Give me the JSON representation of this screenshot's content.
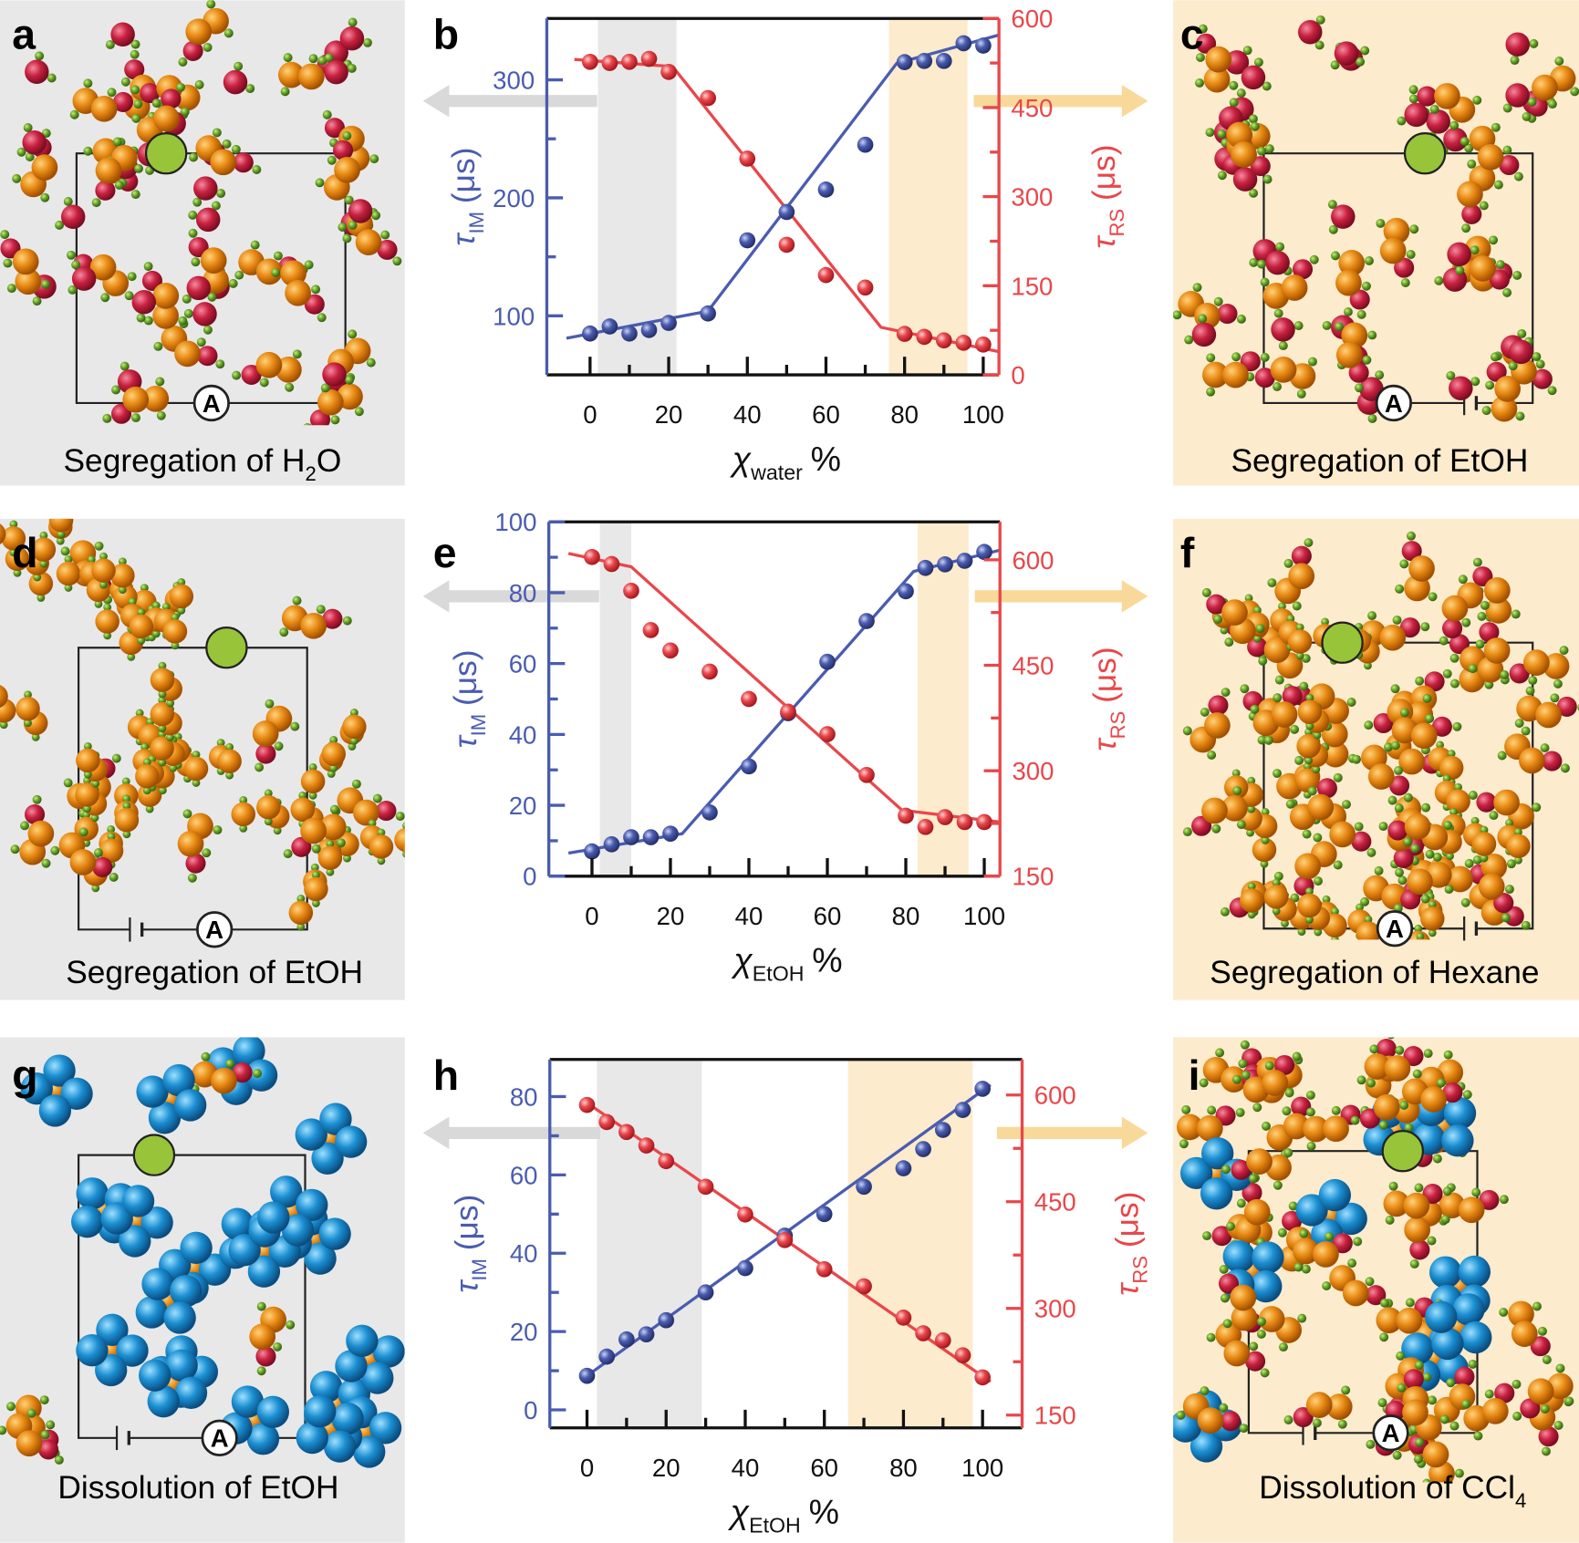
{
  "panels": [
    {
      "label": "a",
      "caption": {
        "text": "Segregation of H",
        "sub": "2",
        "tail": "O"
      },
      "ammeter": "A"
    },
    {
      "label": "c",
      "caption": {
        "text": "Segregation of EtOH"
      },
      "ammeter": "A"
    },
    {
      "label": "d",
      "caption": {
        "text": "Segregation of EtOH"
      },
      "ammeter": "A"
    },
    {
      "label": "f",
      "caption": {
        "text": "Segregation of Hexane"
      },
      "ammeter": "A"
    },
    {
      "label": "g",
      "caption": {
        "text": "Dissolution of EtOH"
      },
      "ammeter": "A"
    },
    {
      "label": "i",
      "caption": {
        "text": "Dissolution of CCl",
        "sub": "4"
      },
      "ammeter": "A"
    }
  ],
  "chart_data": [
    {
      "type": "scatter",
      "panel_label": "b",
      "xlabel": {
        "symbol": "χ",
        "sub": "water",
        "tail": "%"
      },
      "ylabel": {
        "symbol": "τ",
        "sub": "IM",
        "tail": "(μs)"
      },
      "y2label": {
        "symbol": "τ",
        "sub": "RS",
        "tail": "(μs)"
      },
      "xlim": [
        -11,
        104
      ],
      "xticks": [
        0,
        20,
        40,
        60,
        80,
        100
      ],
      "xminor": [
        10,
        30,
        50,
        70,
        90
      ],
      "ylim": [
        50,
        352
      ],
      "yticks": [
        100,
        200,
        300
      ],
      "yminor": [
        150,
        250
      ],
      "y2lim": [
        0,
        600
      ],
      "y2ticks": [
        0,
        150,
        300,
        450,
        600
      ],
      "y2minor": [
        75,
        225,
        375,
        525
      ],
      "shaded": [
        {
          "range": [
            2,
            22
          ],
          "color": "#e8e8e8"
        },
        {
          "range": [
            76,
            96
          ],
          "color": "#fcebcc"
        }
      ],
      "x": [
        0,
        5,
        10,
        15,
        20,
        30,
        40,
        50,
        60,
        70,
        80,
        85,
        90,
        95,
        100
      ],
      "series": [
        {
          "color": "#4a5cb0",
          "axis": "y",
          "values": [
            85,
            91,
            85,
            88,
            94,
            102,
            164,
            188,
            207,
            245,
            315,
            316,
            316,
            331,
            329
          ]
        },
        {
          "color": "#e8474b",
          "axis": "y2",
          "values": [
            527,
            525,
            527,
            532,
            510,
            466,
            364,
            219,
            168,
            147,
            69,
            64,
            58,
            54,
            51
          ]
        }
      ],
      "fits": [
        {
          "color": "#4a5cb0",
          "axis": "y",
          "x": [
            -6,
            30,
            78,
            104
          ],
          "values": [
            81,
            104,
            314,
            338
          ]
        },
        {
          "color": "#e8474b",
          "axis": "y2",
          "x": [
            -4,
            21,
            74,
            104
          ],
          "values": [
            531,
            519,
            80,
            39
          ]
        }
      ]
    },
    {
      "type": "scatter",
      "panel_label": "e",
      "xlabel": {
        "symbol": "χ",
        "sub": "EtOH",
        "tail": "%"
      },
      "ylabel": {
        "symbol": "τ",
        "sub": "IM",
        "tail": "(μs)"
      },
      "y2label": {
        "symbol": "τ",
        "sub": "RS",
        "tail": "(μs)"
      },
      "xlim": [
        -11,
        104
      ],
      "xticks": [
        0,
        20,
        40,
        60,
        80,
        100
      ],
      "xminor": [
        10,
        30,
        50,
        70,
        90
      ],
      "ylim": [
        0,
        100
      ],
      "yticks": [
        0,
        20,
        40,
        60,
        80,
        100
      ],
      "yminor": [
        10,
        30,
        50,
        70,
        90
      ],
      "y2lim": [
        150,
        654
      ],
      "y2ticks": [
        150,
        300,
        450,
        600
      ],
      "y2minor": [
        225,
        375,
        525
      ],
      "shaded": [
        {
          "range": [
            2,
            10
          ],
          "color": "#e8e8e8"
        },
        {
          "range": [
            83,
            96
          ],
          "color": "#fcebcc"
        }
      ],
      "x": [
        0,
        5,
        10,
        15,
        20,
        30,
        40,
        50,
        60,
        70,
        80,
        85,
        90,
        95,
        100
      ],
      "series": [
        {
          "color": "#4a5cb0",
          "axis": "y",
          "values": [
            7,
            9,
            11,
            11,
            12,
            18,
            31,
            46,
            60.5,
            72,
            80.4,
            87,
            88,
            89,
            91.5
          ]
        },
        {
          "color": "#e8474b",
          "axis": "y2",
          "values": [
            604,
            594,
            556,
            500,
            471,
            441,
            402,
            384,
            352,
            294,
            236,
            220,
            234,
            227,
            227
          ]
        }
      ],
      "fits": [
        {
          "color": "#4a5cb0",
          "axis": "y",
          "x": [
            -6,
            23,
            82,
            104
          ],
          "values": [
            6.5,
            12,
            86,
            92
          ]
        },
        {
          "color": "#e8474b",
          "axis": "y2",
          "x": [
            -6,
            10,
            79,
            104
          ],
          "values": [
            609,
            590,
            244,
            227
          ]
        }
      ]
    },
    {
      "type": "scatter",
      "panel_label": "h",
      "xlabel": {
        "symbol": "χ",
        "sub": "EtOH",
        "tail": "%"
      },
      "ylabel": {
        "symbol": "τ",
        "sub": "IM",
        "tail": "(μs)"
      },
      "y2label": {
        "symbol": "τ",
        "sub": "RS",
        "tail": "(μs)"
      },
      "xlim": [
        -9.4,
        110
      ],
      "xticks": [
        0,
        20,
        40,
        60,
        80,
        100
      ],
      "xminor": [
        10,
        30,
        50,
        70,
        90
      ],
      "ylim": [
        -4.6,
        89.5
      ],
      "yticks": [
        0,
        20,
        40,
        60,
        80
      ],
      "yminor": [
        10,
        30,
        50,
        70
      ],
      "y2lim": [
        132,
        650
      ],
      "y2ticks": [
        150,
        300,
        450,
        600
      ],
      "y2minor": [
        225,
        375,
        525
      ],
      "shaded": [
        {
          "range": [
            2.5,
            29
          ],
          "color": "#e8e8e8"
        },
        {
          "range": [
            66,
            97.5
          ],
          "color": "#fcebcc"
        }
      ],
      "x": [
        0,
        5,
        10,
        15,
        20,
        30,
        40,
        50,
        60,
        70,
        80,
        85,
        90,
        95,
        100
      ],
      "series": [
        {
          "color": "#4a5cb0",
          "axis": "y",
          "values": [
            8.7,
            13.6,
            18,
            19.3,
            22.9,
            30,
            36.2,
            44.5,
            50,
            57,
            61.7,
            66.6,
            71.5,
            76.6,
            82
          ]
        },
        {
          "color": "#e8474b",
          "axis": "y2",
          "values": [
            586,
            562,
            548,
            529,
            507,
            471,
            432,
            396,
            355,
            331,
            287,
            265,
            255,
            234,
            203
          ]
        }
      ],
      "fits": [
        {
          "color": "#4a5cb0",
          "axis": "y",
          "x": [
            0,
            102
          ],
          "values": [
            8.7,
            83
          ]
        },
        {
          "color": "#e8474b",
          "axis": "y2",
          "x": [
            0,
            102
          ],
          "values": [
            589,
            197
          ]
        }
      ]
    }
  ]
}
